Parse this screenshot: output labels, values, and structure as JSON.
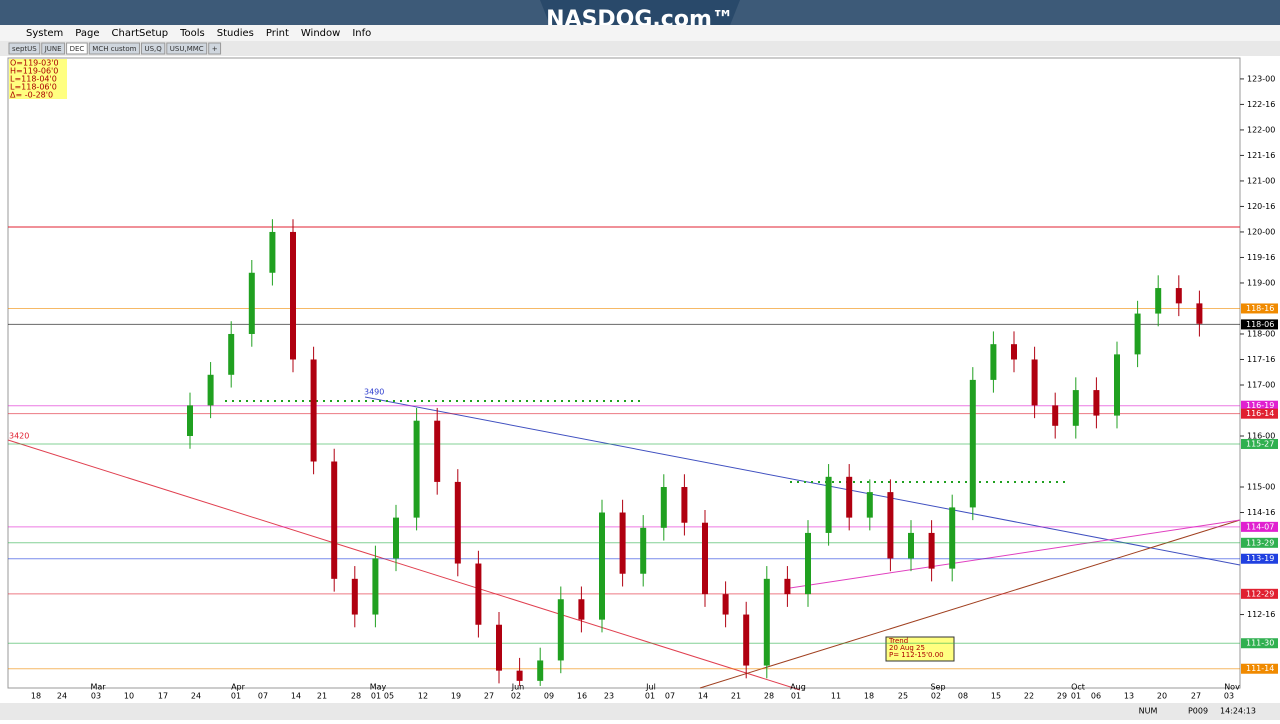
{
  "logo": "NASDOG.com™",
  "menu": [
    "System",
    "Page",
    "ChartSetup",
    "Tools",
    "Studies",
    "Print",
    "Window",
    "Info"
  ],
  "tabs": [
    "septUS",
    "JUNE",
    "DEC",
    "MCH custom",
    "US,Q",
    "USU,MMC",
    "+"
  ],
  "ohlc_box": [
    "O=119-03'0",
    "H=119-06'0",
    "L=118-04'0",
    "L=118-06'0",
    "Δ= -0-28'0"
  ],
  "annotations": [
    "3490",
    "3420"
  ],
  "trend_tip": [
    "Trend",
    "20 Aug 25",
    "P= 112-15'0.00"
  ],
  "status": [
    "NUM",
    "P009",
    "14:24:13"
  ],
  "chart": {
    "type": "candlestick",
    "ylim": [
      111.06,
      123.41
    ],
    "yticks": [
      {
        "value": 123,
        "label": "123-00"
      },
      {
        "value": 122.5,
        "label": "122-16"
      },
      {
        "value": 122,
        "label": "122-00"
      },
      {
        "value": 121.5,
        "label": "121-16"
      },
      {
        "value": 121,
        "label": "121-00"
      },
      {
        "value": 120.5,
        "label": "120-16"
      },
      {
        "value": 120,
        "label": "120-00"
      },
      {
        "value": 119.5,
        "label": "119-16"
      },
      {
        "value": 119,
        "label": "119-00"
      },
      {
        "value": 118,
        "label": "118-00"
      },
      {
        "value": 117.5,
        "label": "117-16"
      },
      {
        "value": 117,
        "label": "117-00"
      },
      {
        "value": 116,
        "label": "116-00"
      },
      {
        "value": 115,
        "label": "115-00"
      },
      {
        "value": 114.5,
        "label": "114-16"
      },
      {
        "value": 112.5,
        "label": "112-16"
      }
    ],
    "price_tags": [
      {
        "value": 118.5,
        "label": "118-16",
        "color": "#f08a00"
      },
      {
        "value": 118.1875,
        "label": "118-06",
        "color": "#000000"
      },
      {
        "value": 116.59375,
        "label": "116-19",
        "color": "#e020d0"
      },
      {
        "value": 116.4375,
        "label": "116-14",
        "color": "#e02030"
      },
      {
        "value": 115.84375,
        "label": "115-27",
        "color": "#30b050"
      },
      {
        "value": 114.21875,
        "label": "114-07",
        "color": "#e020d0"
      },
      {
        "value": 113.90625,
        "label": "113-29",
        "color": "#30b050"
      },
      {
        "value": 113.59375,
        "label": "113-19",
        "color": "#2040e0"
      },
      {
        "value": 112.90625,
        "label": "112-29",
        "color": "#e02030"
      },
      {
        "value": 111.9375,
        "label": "111-30",
        "color": "#30b050"
      },
      {
        "value": 111.4375,
        "label": "111-14",
        "color": "#f08a00"
      }
    ],
    "months": [
      "Mar",
      "Apr",
      "May",
      "Jun",
      "Jul",
      "Aug",
      "Sep",
      "Oct",
      "Nov"
    ],
    "days": [
      "18",
      "24",
      "03",
      "10",
      "17",
      "24",
      "01",
      "07",
      "14",
      "21",
      "28",
      "01",
      "05",
      "12",
      "19",
      "27",
      "02",
      "09",
      "16",
      "23",
      "01",
      "07",
      "14",
      "21",
      "28",
      "01",
      "11",
      "18",
      "25",
      "02",
      "08",
      "15",
      "22",
      "29",
      "01",
      "06",
      "13",
      "20",
      "27",
      "03"
    ],
    "up_color": "#20a020",
    "down_color": "#b00010",
    "candles": [
      [
        116.0,
        116.85,
        115.75,
        116.6
      ],
      [
        116.6,
        117.45,
        116.35,
        117.2
      ],
      [
        117.2,
        118.25,
        116.95,
        118.0
      ],
      [
        118.0,
        119.45,
        117.75,
        119.2
      ],
      [
        119.2,
        120.25,
        118.95,
        120.0
      ],
      [
        120.0,
        120.25,
        117.25,
        117.5
      ],
      [
        117.5,
        117.75,
        115.25,
        115.5
      ],
      [
        115.5,
        115.75,
        112.95,
        113.2
      ],
      [
        113.2,
        113.45,
        112.25,
        112.5
      ],
      [
        112.5,
        113.85,
        112.25,
        113.6
      ],
      [
        113.6,
        114.65,
        113.35,
        114.4
      ],
      [
        114.4,
        116.55,
        114.15,
        116.3
      ],
      [
        116.3,
        116.55,
        114.85,
        115.1
      ],
      [
        115.1,
        115.35,
        113.25,
        113.5
      ],
      [
        113.5,
        113.75,
        112.05,
        112.3
      ],
      [
        112.3,
        112.55,
        111.15,
        111.4
      ],
      [
        111.4,
        111.65,
        111.1,
        111.2
      ],
      [
        111.2,
        111.85,
        111.1,
        111.6
      ],
      [
        111.6,
        113.05,
        111.35,
        112.8
      ],
      [
        112.8,
        113.05,
        112.15,
        112.4
      ],
      [
        112.4,
        114.75,
        112.15,
        114.5
      ],
      [
        114.5,
        114.75,
        113.05,
        113.3
      ],
      [
        113.3,
        114.45,
        113.05,
        114.2
      ],
      [
        114.2,
        115.25,
        113.95,
        115.0
      ],
      [
        115.0,
        115.25,
        114.05,
        114.3
      ],
      [
        114.3,
        114.55,
        112.65,
        112.9
      ],
      [
        112.9,
        113.15,
        112.25,
        112.5
      ],
      [
        112.5,
        112.75,
        111.25,
        111.5
      ],
      [
        111.5,
        113.45,
        111.25,
        113.2
      ],
      [
        113.2,
        113.45,
        112.65,
        112.9
      ],
      [
        112.9,
        114.35,
        112.65,
        114.1
      ],
      [
        114.1,
        115.45,
        113.85,
        115.2
      ],
      [
        115.2,
        115.45,
        114.15,
        114.4
      ],
      [
        114.4,
        115.15,
        114.15,
        114.9
      ],
      [
        114.9,
        115.15,
        113.35,
        113.6
      ],
      [
        113.6,
        114.35,
        113.35,
        114.1
      ],
      [
        114.1,
        114.35,
        113.15,
        113.4
      ],
      [
        113.4,
        114.85,
        113.15,
        114.6
      ],
      [
        114.6,
        117.35,
        114.35,
        117.1
      ],
      [
        117.1,
        118.05,
        116.85,
        117.8
      ],
      [
        117.8,
        118.05,
        117.25,
        117.5
      ],
      [
        117.5,
        117.75,
        116.35,
        116.6
      ],
      [
        116.6,
        116.85,
        115.95,
        116.2
      ],
      [
        116.2,
        117.15,
        115.95,
        116.9
      ],
      [
        116.9,
        117.15,
        116.15,
        116.4
      ],
      [
        116.4,
        117.85,
        116.15,
        117.6
      ],
      [
        117.6,
        118.65,
        117.35,
        118.4
      ],
      [
        118.4,
        119.15,
        118.15,
        118.9
      ],
      [
        118.9,
        119.15,
        118.35,
        118.6
      ],
      [
        118.6,
        118.85,
        117.95,
        118.2
      ]
    ]
  }
}
